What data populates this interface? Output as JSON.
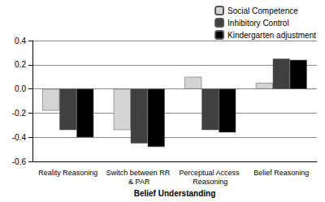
{
  "chart_data": {
    "type": "bar",
    "x_label": "Belief Understanding",
    "categories": [
      "Reality Reasoning",
      "Switch between RR & PAR",
      "Perceptual Access Reasoning",
      "Belief Reasoning"
    ],
    "series": [
      {
        "name": "Social Competence",
        "color": "#d4d4d4",
        "values": [
          -0.18,
          -0.34,
          0.1,
          0.05
        ]
      },
      {
        "name": "Inhibitory Control",
        "color": "#404040",
        "values": [
          -0.34,
          -0.45,
          -0.34,
          0.25
        ]
      },
      {
        "name": "Kindergarten adjustment",
        "color": "#000000",
        "values": [
          -0.4,
          -0.48,
          -0.36,
          0.24
        ]
      }
    ],
    "ylim": [
      -0.6,
      0.4
    ],
    "yticks": [
      -0.6,
      -0.4,
      -0.2,
      {
        "value": 0,
        "label": "0.0"
      },
      0.2,
      0.4
    ],
    "grid": true,
    "legend": "top-right"
  }
}
